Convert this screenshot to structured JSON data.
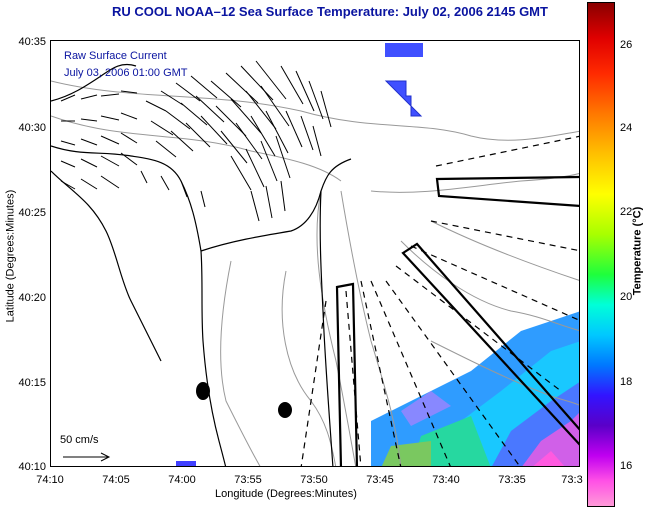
{
  "title": "RU COOL  NOAA–12  Sea Surface Temperature:  July 02, 2006 2145 GMT",
  "overlay": {
    "raw_label": "Raw Surface Current",
    "date_label": "July 03, 2006 01:00 GMT"
  },
  "axes": {
    "x_title": "Longitude (Degrees:Minutes)",
    "y_title": "Latitude (Degrees:Minutes)",
    "x_ticks": [
      "74:10",
      "74:05",
      "74:00",
      "73:55",
      "73:50",
      "73:45",
      "73:40",
      "73:35",
      "73:3"
    ],
    "y_ticks": [
      "40:35",
      "40:30",
      "40:25",
      "40:20",
      "40:15",
      "40:10"
    ]
  },
  "scale": {
    "label": "50 cm/s"
  },
  "colorbar": {
    "title": "Temperature (°C)",
    "ticks": [
      "26",
      "24",
      "22",
      "20",
      "18",
      "16"
    ]
  },
  "colors": {
    "title": "#0a14a0",
    "contour": "#999999",
    "coast": "#000000"
  }
}
